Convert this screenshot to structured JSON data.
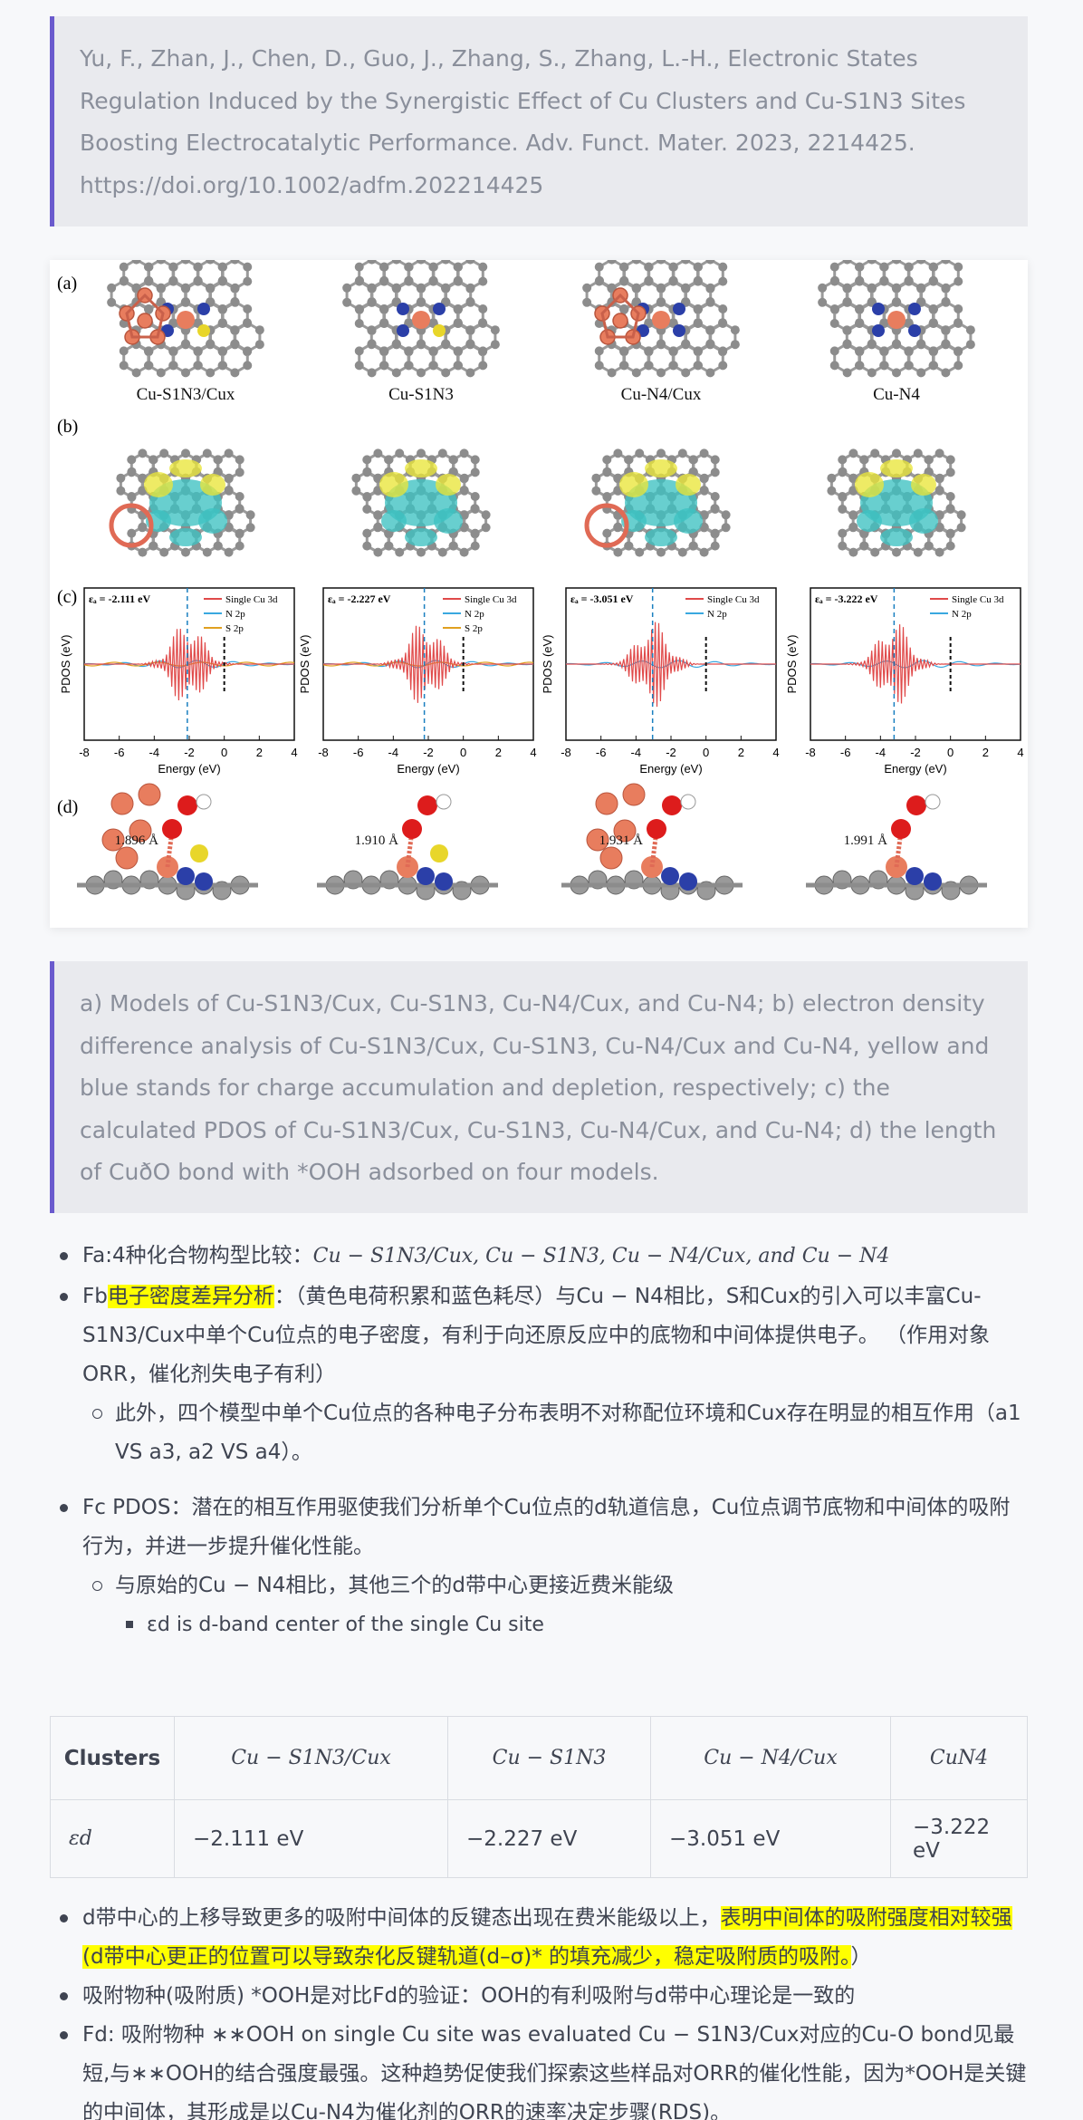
{
  "citation": "Yu, F., Zhan, J., Chen, D., Guo, J., Zhang, S., Zhang, L.-H., Electronic States Regulation Induced by the Synergistic Effect of Cu Clusters and Cu-S1N3 Sites Boosting Electrocatalytic Performance. Adv. Funct. Mater. 2023, 2214425. https://doi.org/10.1002/adfm.202214425",
  "figure": {
    "panel_labels": [
      "(a)",
      "(b)",
      "(c)",
      "(d)"
    ],
    "models": [
      "Cu-S1N3/Cux",
      "Cu-S1N3",
      "Cu-N4/Cux",
      "Cu-N4"
    ],
    "pdos": {
      "xlabel": "Energy (eV)",
      "ylabel": "PDOS (eV)",
      "xticks": [
        "-8",
        "-6",
        "-4",
        "-2",
        "0",
        "2",
        "4"
      ],
      "panels": [
        {
          "ed": "εₐ = -2.111 eV",
          "legend": [
            "Single Cu 3d",
            "N 2p",
            "S 2p"
          ]
        },
        {
          "ed": "εₐ = -2.227 eV",
          "legend": [
            "Single Cu 3d",
            "N 2p",
            "S 2p"
          ]
        },
        {
          "ed": "εₐ = -3.051 eV",
          "legend": [
            "Single Cu 3d",
            "N 2p"
          ]
        },
        {
          "ed": "εₐ = -3.222 eV",
          "legend": [
            "Single Cu 3d",
            "N 2p"
          ]
        }
      ]
    },
    "bond_lengths": [
      "1.896 Å",
      "1.910 Å",
      "1.931 Å",
      "1.991 Å"
    ]
  },
  "caption": "a) Models of Cu-S1N3/Cux, Cu-S1N3, Cu-N4/Cux, and Cu-N4; b) electron density difference analysis of Cu-S1N3/Cux, Cu-S1N3, Cu-N4/Cux and Cu-N4, yellow and blue stands for charge accumulation and depletion, respectively; c) the calculated PDOS of Cu-S1N3/Cux, Cu-S1N3, Cu-N4/Cux, and Cu-N4; d) the length of CuðO bond with *OOH adsorbed on four models.",
  "notes": {
    "fa_prefix": "Fa:4种化合物构型比较：",
    "fa_text": "Cu − S1N3/Cux, Cu − S1N3, Cu − N4/Cux, and Cu − N4",
    "fb_prefix": "Fb",
    "fb_highlight": "电子密度差异分析",
    "fb_text": "：（黄色电荷积累和蓝色耗尽）与Cu − N4相比，S和Cux的引入可以丰富Cu-S1N3/Cux中单个Cu位点的电子密度，有利于向还原反应中的底物和中间体提供电子。 （作用对象ORR，催化剂失电子有利）",
    "fb_sub": "此外，四个模型中单个Cu位点的各种电子分布表明不对称配位环境和Cux存在明显的相互作用（a1 VS a3, a2 VS a4）。",
    "fc_text": "Fc PDOS：潜在的相互作用驱使我们分析单个Cu位点的d轨道信息，Cu位点调节底物和中间体的吸附行为，并进一步提升催化性能。",
    "fc_sub": "与原始的Cu − N4相比，其他三个的d带中心更接近费米能级",
    "fc_sub2": "εd is d-band center of the single Cu site",
    "d1_text": "d带中心的上移导致更多的吸附中间体的反键态出现在费米能级以上，",
    "d1_highlight": "表明中间体的吸附强度相对较强(d带中心更正的位置可以导致杂化反键轨道(d–σ)* 的填充减少，稳定吸附质的吸附。",
    "d1_end": "）",
    "d2_text": "吸附物种(吸附质) *OOH是对比Fd的验证：OOH的有利吸附与d带中心理论是一致的",
    "fd_text": "Fd: 吸附物种 ∗∗OOH on single Cu site was evaluated Cu − S1N3/Cux对应的Cu-O bond见最短,与∗∗OOH的结合强度最强。这种趋势促使我们探索这些样品对ORR的催化性能，因为*OOH是关键的中间体，其形成是以Cu-N4为催化剂的ORR的速率决定步骤(RDS)。"
  },
  "table": {
    "headers": [
      "Clusters",
      "Cu − S1N3/Cux",
      "Cu − S1N3",
      "Cu − N4/Cux",
      "CuN4"
    ],
    "row_label": "εd",
    "values": [
      "−2.111 eV",
      "−2.227 eV",
      "−3.051 eV",
      "−3.222 eV"
    ]
  }
}
